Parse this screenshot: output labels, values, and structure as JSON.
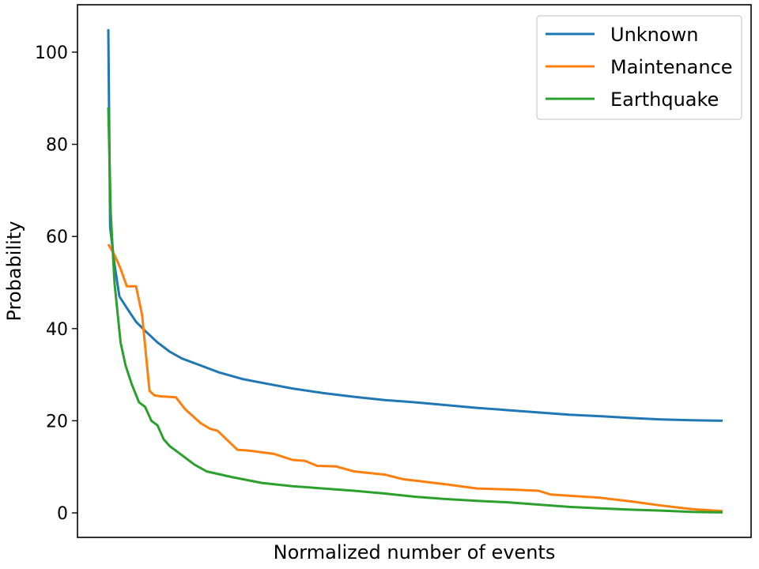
{
  "chart_data": {
    "type": "line",
    "xlabel": "Normalized number of events",
    "ylabel": "Probability",
    "xlim": [
      0,
      1
    ],
    "ylim": [
      -5,
      110
    ],
    "x_ticks_shown": false,
    "y_ticks": [
      0,
      20,
      40,
      60,
      80,
      100
    ],
    "grid": false,
    "legend_placement": "top-right",
    "series": [
      {
        "name": "Unknown",
        "color": "#1f77b4",
        "points": [
          [
            0.0,
            105
          ],
          [
            0.003,
            62
          ],
          [
            0.01,
            54
          ],
          [
            0.018,
            47
          ],
          [
            0.03,
            44.5
          ],
          [
            0.045,
            41.5
          ],
          [
            0.06,
            39.5
          ],
          [
            0.08,
            37
          ],
          [
            0.1,
            35
          ],
          [
            0.12,
            33.5
          ],
          [
            0.15,
            32
          ],
          [
            0.18,
            30.5
          ],
          [
            0.22,
            29
          ],
          [
            0.26,
            28
          ],
          [
            0.3,
            27
          ],
          [
            0.35,
            26
          ],
          [
            0.4,
            25.2
          ],
          [
            0.45,
            24.5
          ],
          [
            0.5,
            24
          ],
          [
            0.55,
            23.4
          ],
          [
            0.6,
            22.8
          ],
          [
            0.65,
            22.3
          ],
          [
            0.7,
            21.8
          ],
          [
            0.75,
            21.3
          ],
          [
            0.8,
            21
          ],
          [
            0.85,
            20.6
          ],
          [
            0.9,
            20.3
          ],
          [
            0.95,
            20.1
          ],
          [
            1.0,
            20
          ]
        ]
      },
      {
        "name": "Maintenance",
        "color": "#ff7f0e",
        "points": [
          [
            0.0,
            58.3
          ],
          [
            0.01,
            56
          ],
          [
            0.02,
            53
          ],
          [
            0.03,
            49.2
          ],
          [
            0.045,
            49.2
          ],
          [
            0.055,
            43
          ],
          [
            0.067,
            26.5
          ],
          [
            0.075,
            25.5
          ],
          [
            0.085,
            25.3
          ],
          [
            0.11,
            25.1
          ],
          [
            0.125,
            22.5
          ],
          [
            0.15,
            19.5
          ],
          [
            0.165,
            18.3
          ],
          [
            0.178,
            17.8
          ],
          [
            0.21,
            13.7
          ],
          [
            0.23,
            13.5
          ],
          [
            0.27,
            12.8
          ],
          [
            0.3,
            11.5
          ],
          [
            0.32,
            11.3
          ],
          [
            0.34,
            10.2
          ],
          [
            0.37,
            10.1
          ],
          [
            0.4,
            9
          ],
          [
            0.45,
            8.3
          ],
          [
            0.48,
            7.3
          ],
          [
            0.55,
            6.2
          ],
          [
            0.6,
            5.3
          ],
          [
            0.65,
            5.1
          ],
          [
            0.7,
            4.8
          ],
          [
            0.72,
            4
          ],
          [
            0.8,
            3.3
          ],
          [
            0.85,
            2.5
          ],
          [
            0.9,
            1.6
          ],
          [
            0.95,
            0.8
          ],
          [
            1.0,
            0.4
          ]
        ]
      },
      {
        "name": "Earthquake",
        "color": "#2ca02c",
        "points": [
          [
            0.0,
            88
          ],
          [
            0.004,
            65
          ],
          [
            0.01,
            50
          ],
          [
            0.02,
            37
          ],
          [
            0.028,
            32
          ],
          [
            0.038,
            28
          ],
          [
            0.05,
            24
          ],
          [
            0.06,
            23
          ],
          [
            0.07,
            20
          ],
          [
            0.08,
            19
          ],
          [
            0.09,
            16
          ],
          [
            0.1,
            14.5
          ],
          [
            0.12,
            12.5
          ],
          [
            0.14,
            10.5
          ],
          [
            0.16,
            9
          ],
          [
            0.2,
            7.8
          ],
          [
            0.25,
            6.5
          ],
          [
            0.3,
            5.8
          ],
          [
            0.35,
            5.3
          ],
          [
            0.4,
            4.8
          ],
          [
            0.45,
            4.2
          ],
          [
            0.5,
            3.5
          ],
          [
            0.55,
            3
          ],
          [
            0.6,
            2.6
          ],
          [
            0.65,
            2.3
          ],
          [
            0.7,
            1.8
          ],
          [
            0.75,
            1.3
          ],
          [
            0.8,
            1
          ],
          [
            0.85,
            0.7
          ],
          [
            0.9,
            0.5
          ],
          [
            0.95,
            0.2
          ],
          [
            1.0,
            0.1
          ]
        ]
      }
    ]
  }
}
